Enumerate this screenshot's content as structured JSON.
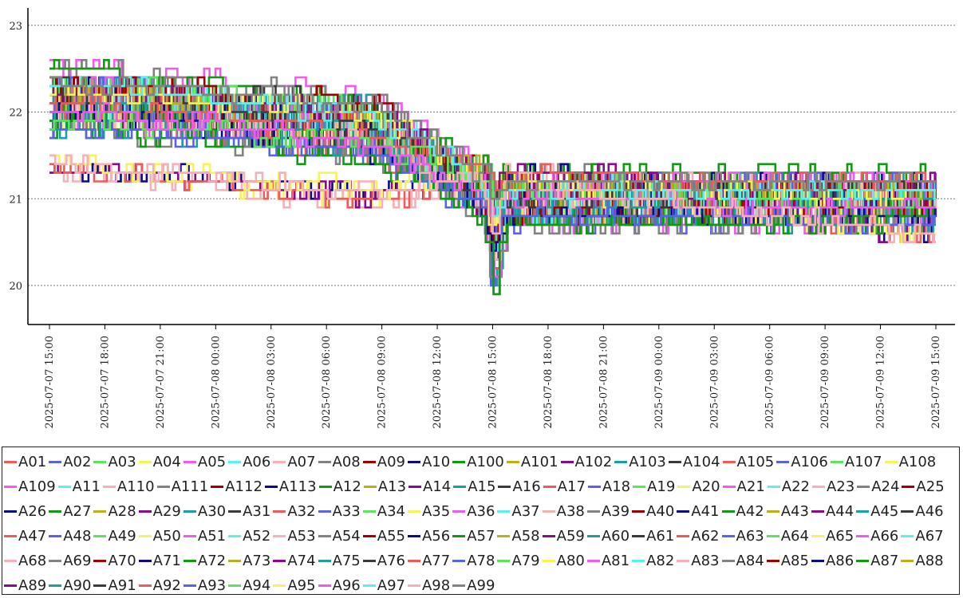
{
  "chart_data": {
    "type": "line",
    "ylim": [
      19.55,
      23.2
    ],
    "xlim": [
      "2025-07-07 15:00",
      "2025-07-09 15:00"
    ],
    "yticks": [
      20,
      21,
      22,
      23
    ],
    "xticks": [
      "2025-07-07 15:00",
      "2025-07-07 18:00",
      "2025-07-07 21:00",
      "2025-07-08 00:00",
      "2025-07-08 03:00",
      "2025-07-08 06:00",
      "2025-07-08 09:00",
      "2025-07-08 12:00",
      "2025-07-08 15:00",
      "2025-07-08 18:00",
      "2025-07-08 21:00",
      "2025-07-09 00:00",
      "2025-07-09 03:00",
      "2025-07-09 06:00",
      "2025-07-09 09:00",
      "2025-07-09 12:00",
      "2025-07-09 15:00"
    ],
    "grid": "horizontal dotted",
    "legend_position": "bottom",
    "series_labels": [
      "A01",
      "A02",
      "A03",
      "A04",
      "A05",
      "A06",
      "A07",
      "A08",
      "A09",
      "A10",
      "A100",
      "A101",
      "A102",
      "A103",
      "A104",
      "A105",
      "A106",
      "A107",
      "A108",
      "A109",
      "A11",
      "A110",
      "A111",
      "A112",
      "A113",
      "A12",
      "A13",
      "A14",
      "A15",
      "A16",
      "A17",
      "A18",
      "A19",
      "A20",
      "A21",
      "A22",
      "A23",
      "A24",
      "A25",
      "A26",
      "A27",
      "A28",
      "A29",
      "A30",
      "A31",
      "A32",
      "A33",
      "A34",
      "A35",
      "A36",
      "A37",
      "A38",
      "A39",
      "A40",
      "A41",
      "A42",
      "A43",
      "A44",
      "A45",
      "A46",
      "A47",
      "A48",
      "A49",
      "A50",
      "A51",
      "A52",
      "A53",
      "A54",
      "A55",
      "A56",
      "A57",
      "A58",
      "A59",
      "A60",
      "A61",
      "A62",
      "A63",
      "A64",
      "A65",
      "A66",
      "A67",
      "A68",
      "A69",
      "A70",
      "A71",
      "A72",
      "A73",
      "A74",
      "A75",
      "A76",
      "A77",
      "A78",
      "A79",
      "A80",
      "A81",
      "A82",
      "A83",
      "A84",
      "A85",
      "A86",
      "A87",
      "A88",
      "A89",
      "A90",
      "A91",
      "A92",
      "A93",
      "A94",
      "A95",
      "A96",
      "A97",
      "A98",
      "A99"
    ],
    "palette": [
      "#f05a5a",
      "#5a63e6",
      "#5ae65a",
      "#f7f35a",
      "#ef5aef",
      "#5af0f0",
      "#f5b0b8",
      "#828282",
      "#a00000",
      "#0a0a8c",
      "#0f9a0f",
      "#bcb01a",
      "#8a0a8a",
      "#1aa0a0",
      "#3a3a3a"
    ],
    "profiles": [
      {
        "start": 22.15,
        "plateau": 21.05,
        "end": 21.0,
        "dip": 20.55
      },
      {
        "start": 22.0,
        "plateau": 20.95,
        "end": 20.9,
        "dip": 20.7
      },
      {
        "start": 22.3,
        "plateau": 21.1,
        "end": 21.05,
        "dip": 20.8
      },
      {
        "start": 21.4,
        "plateau": 21.2,
        "end": 20.6,
        "dip": 20.6
      },
      {
        "start": 22.4,
        "plateau": 21.2,
        "end": 21.2,
        "dip": 21.0
      },
      {
        "start": 22.1,
        "plateau": 21.0,
        "end": 20.95,
        "dip": 20.8
      },
      {
        "start": 22.0,
        "plateau": 20.9,
        "end": 21.0,
        "dip": 20.7
      },
      {
        "start": 22.2,
        "plateau": 21.1,
        "end": 21.05,
        "dip": 20.9
      },
      {
        "start": 22.35,
        "plateau": 20.8,
        "end": 20.95,
        "dip": 20.5
      },
      {
        "start": 22.0,
        "plateau": 20.85,
        "end": 20.85,
        "dip": 20.3
      },
      {
        "start": 21.95,
        "plateau": 20.75,
        "end": 20.8,
        "dip": 19.9
      },
      {
        "start": 22.1,
        "plateau": 21.1,
        "end": 21.0,
        "dip": 20.8
      },
      {
        "start": 22.2,
        "plateau": 21.05,
        "end": 20.95,
        "dip": 20.8
      },
      {
        "start": 22.05,
        "plateau": 20.95,
        "end": 21.0,
        "dip": 20.8
      },
      {
        "start": 22.25,
        "plateau": 21.0,
        "end": 21.1,
        "dip": 20.9
      },
      {
        "start": 22.1,
        "plateau": 21.3,
        "end": 21.2,
        "dip": 21.1
      },
      {
        "start": 21.9,
        "plateau": 20.85,
        "end": 20.75,
        "dip": 20.6
      },
      {
        "start": 22.0,
        "plateau": 21.2,
        "end": 20.95,
        "dip": 20.9
      }
    ]
  }
}
